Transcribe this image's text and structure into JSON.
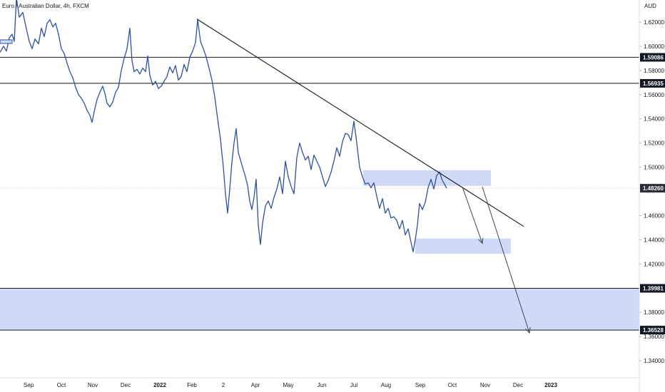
{
  "title": "Euro / Australian Dollar, 4h, FXCM",
  "chart_data": {
    "type": "line",
    "currency": "AUD",
    "ylim": [
      1.32,
      1.64
    ],
    "y_ticks": [
      "1.62000",
      "1.60000",
      "1.58000",
      "1.56000",
      "1.54000",
      "1.52000",
      "1.50000",
      "1.46000",
      "1.44000",
      "1.42000",
      "1.38000",
      "1.36000",
      "1.34000"
    ],
    "x_ticks": [
      "Sep",
      "Oct",
      "Nov",
      "Dec",
      "2022",
      "Feb",
      "2",
      "Apr",
      "May",
      "Jun",
      "Jul",
      "Aug",
      "Sep",
      "Oct",
      "Nov",
      "Dec",
      "2023"
    ],
    "price_tags": [
      {
        "label": "1.59086",
        "value": 1.59086
      },
      {
        "label": "1.56935",
        "value": 1.56935
      },
      {
        "label": "1.48260",
        "value": 1.4826
      },
      {
        "label": "1.39981",
        "value": 1.39981
      },
      {
        "label": "1.36528",
        "value": 1.36528
      }
    ],
    "horizontal_lines": [
      1.59086,
      1.56935,
      1.39981,
      1.36528
    ],
    "current_price": 1.4826,
    "zones": [
      {
        "from": 1.36528,
        "to": 1.39981
      },
      {
        "from": 1.4845,
        "to": 1.4975
      },
      {
        "from": 1.4285,
        "to": 1.441
      }
    ],
    "series": [
      {
        "values": [
          [
            0,
            1.595
          ],
          [
            5,
            1.6
          ],
          [
            9,
            1.596
          ],
          [
            13,
            1.607
          ],
          [
            17,
            1.61
          ],
          [
            20,
            1.604
          ],
          [
            23,
            1.64
          ],
          [
            27,
            1.624
          ],
          [
            32,
            1.628
          ],
          [
            36,
            1.617
          ],
          [
            41,
            1.604
          ],
          [
            45,
            1.598
          ],
          [
            49,
            1.606
          ],
          [
            54,
            1.602
          ],
          [
            58,
            1.615
          ],
          [
            62,
            1.608
          ],
          [
            66,
            1.619
          ],
          [
            70,
            1.622
          ],
          [
            74,
            1.616
          ],
          [
            78,
            1.619
          ],
          [
            82,
            1.61
          ],
          [
            86,
            1.598
          ],
          [
            90,
            1.594
          ],
          [
            94,
            1.586
          ],
          [
            98,
            1.579
          ],
          [
            102,
            1.574
          ],
          [
            106,
            1.566
          ],
          [
            110,
            1.56
          ],
          [
            114,
            1.557
          ],
          [
            118,
            1.553
          ],
          [
            122,
            1.547
          ],
          [
            126,
            1.543
          ],
          [
            129,
            1.537
          ],
          [
            132,
            1.546
          ],
          [
            136,
            1.556
          ],
          [
            140,
            1.562
          ],
          [
            144,
            1.567
          ],
          [
            147,
            1.561
          ],
          [
            150,
            1.553
          ],
          [
            154,
            1.55
          ],
          [
            158,
            1.554
          ],
          [
            162,
            1.562
          ],
          [
            166,
            1.566
          ],
          [
            170,
            1.58
          ],
          [
            174,
            1.59
          ],
          [
            178,
            1.598
          ],
          [
            182,
            1.615
          ],
          [
            185,
            1.588
          ],
          [
            188,
            1.579
          ],
          [
            192,
            1.581
          ],
          [
            196,
            1.577
          ],
          [
            200,
            1.582
          ],
          [
            204,
            1.579
          ],
          [
            207,
            1.592
          ],
          [
            210,
            1.576
          ],
          [
            214,
            1.568
          ],
          [
            218,
            1.571
          ],
          [
            222,
            1.565
          ],
          [
            226,
            1.567
          ],
          [
            230,
            1.571
          ],
          [
            234,
            1.575
          ],
          [
            238,
            1.583
          ],
          [
            242,
            1.578
          ],
          [
            246,
            1.584
          ],
          [
            250,
            1.572
          ],
          [
            254,
            1.575
          ],
          [
            258,
            1.585
          ],
          [
            262,
            1.579
          ],
          [
            266,
            1.591
          ],
          [
            270,
            1.596
          ],
          [
            274,
            1.603
          ],
          [
            277,
            1.622
          ],
          [
            281,
            1.604
          ],
          [
            285,
            1.598
          ],
          [
            289,
            1.591
          ],
          [
            293,
            1.582
          ],
          [
            297,
            1.572
          ],
          [
            301,
            1.558
          ],
          [
            305,
            1.54
          ],
          [
            309,
            1.523
          ],
          [
            313,
            1.5
          ],
          [
            316,
            1.478
          ],
          [
            319,
            1.462
          ],
          [
            322,
            1.482
          ],
          [
            325,
            1.504
          ],
          [
            328,
            1.52
          ],
          [
            331,
            1.532
          ],
          [
            334,
            1.512
          ],
          [
            337,
            1.506
          ],
          [
            341,
            1.498
          ],
          [
            344,
            1.492
          ],
          [
            347,
            1.485
          ],
          [
            350,
            1.472
          ],
          [
            353,
            1.465
          ],
          [
            356,
            1.475
          ],
          [
            359,
            1.49
          ],
          [
            362,
            1.452
          ],
          [
            365,
            1.436
          ],
          [
            368,
            1.454
          ],
          [
            372,
            1.468
          ],
          [
            376,
            1.472
          ],
          [
            380,
            1.466
          ],
          [
            384,
            1.475
          ],
          [
            388,
            1.482
          ],
          [
            392,
            1.492
          ],
          [
            396,
            1.478
          ],
          [
            400,
            1.505
          ],
          [
            404,
            1.492
          ],
          [
            408,
            1.484
          ],
          [
            412,
            1.478
          ],
          [
            416,
            1.508
          ],
          [
            420,
            1.52
          ],
          [
            424,
            1.512
          ],
          [
            428,
            1.506
          ],
          [
            432,
            1.509
          ],
          [
            436,
            1.498
          ],
          [
            440,
            1.51
          ],
          [
            444,
            1.505
          ],
          [
            448,
            1.5
          ],
          [
            452,
            1.492
          ],
          [
            456,
            1.484
          ],
          [
            460,
            1.489
          ],
          [
            464,
            1.496
          ],
          [
            468,
            1.505
          ],
          [
            472,
            1.516
          ],
          [
            476,
            1.509
          ],
          [
            480,
            1.521
          ],
          [
            484,
            1.528
          ],
          [
            488,
            1.527
          ],
          [
            492,
            1.522
          ],
          [
            496,
            1.538
          ],
          [
            500,
            1.52
          ],
          [
            504,
            1.5
          ],
          [
            508,
            1.492
          ],
          [
            512,
            1.486
          ],
          [
            516,
            1.487
          ],
          [
            520,
            1.483
          ],
          [
            524,
            1.487
          ],
          [
            528,
            1.476
          ],
          [
            532,
            1.466
          ],
          [
            536,
            1.474
          ],
          [
            540,
            1.462
          ],
          [
            544,
            1.466
          ],
          [
            548,
            1.458
          ],
          [
            552,
            1.459
          ],
          [
            556,
            1.456
          ],
          [
            560,
            1.449
          ],
          [
            564,
            1.456
          ],
          [
            568,
            1.444
          ],
          [
            572,
            1.449
          ],
          [
            576,
            1.438
          ],
          [
            579,
            1.43
          ],
          [
            582,
            1.44
          ],
          [
            585,
            1.452
          ],
          [
            588,
            1.47
          ],
          [
            592,
            1.465
          ],
          [
            596,
            1.471
          ],
          [
            600,
            1.483
          ],
          [
            604,
            1.49
          ],
          [
            608,
            1.482
          ],
          [
            612,
            1.493
          ],
          [
            616,
            1.496
          ],
          [
            620,
            1.489
          ],
          [
            623,
            1.486
          ],
          [
            626,
            1.4826
          ]
        ]
      }
    ],
    "trendline": {
      "from": [
        276,
        1.6225
      ],
      "to": [
        734,
        1.451
      ]
    },
    "arrows": [
      {
        "from": [
          648,
          1.4837
        ],
        "to": [
          676,
          1.437
        ]
      },
      {
        "from": [
          676,
          1.4837
        ],
        "to": [
          742,
          1.363
        ]
      }
    ]
  }
}
